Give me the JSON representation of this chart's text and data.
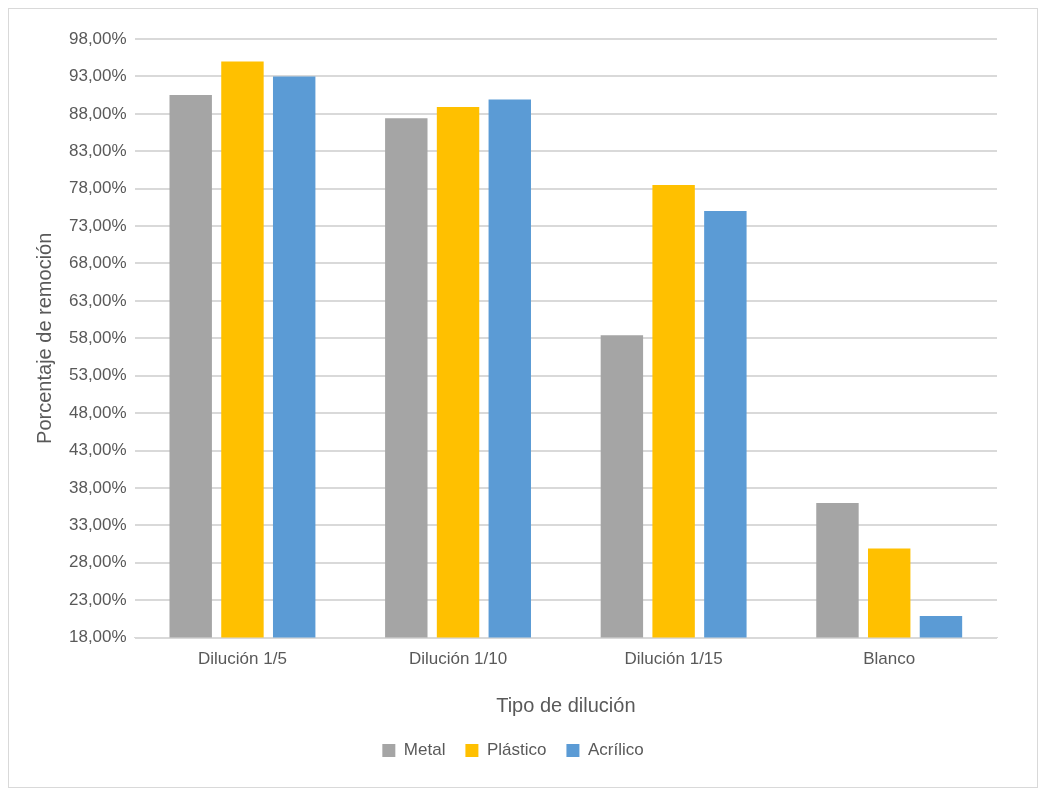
{
  "chart_data": {
    "type": "bar",
    "xlabel": "Tipo de dilución",
    "ylabel": "Porcentaje de remoción",
    "categories": [
      "Dilución 1/5",
      "Dilución 1/10",
      "Dilución 1/15",
      "Blanco"
    ],
    "series": [
      {
        "name": "Metal",
        "color": "#a5a5a5",
        "values": [
          90.5,
          87.4,
          58.4,
          36.0
        ]
      },
      {
        "name": "Plástico",
        "color": "#ffc000",
        "values": [
          95.0,
          88.9,
          78.5,
          29.9
        ]
      },
      {
        "name": "Acrílico",
        "color": "#5b9bd5",
        "values": [
          93.0,
          89.9,
          75.0,
          20.9
        ]
      }
    ],
    "ylim": [
      18,
      98
    ],
    "yticks": [
      {
        "value": 18,
        "label": "18,00%"
      },
      {
        "value": 23,
        "label": "23,00%"
      },
      {
        "value": 28,
        "label": "28,00%"
      },
      {
        "value": 33,
        "label": "33,00%"
      },
      {
        "value": 38,
        "label": "38,00%"
      },
      {
        "value": 43,
        "label": "43,00%"
      },
      {
        "value": 48,
        "label": "48,00%"
      },
      {
        "value": 53,
        "label": "53,00%"
      },
      {
        "value": 58,
        "label": "58,00%"
      },
      {
        "value": 63,
        "label": "63,00%"
      },
      {
        "value": 68,
        "label": "68,00%"
      },
      {
        "value": 73,
        "label": "73,00%"
      },
      {
        "value": 78,
        "label": "78,00%"
      },
      {
        "value": 83,
        "label": "83,00%"
      },
      {
        "value": 88,
        "label": "88,00%"
      },
      {
        "value": 93,
        "label": "93,00%"
      },
      {
        "value": 98,
        "label": "98,00%"
      }
    ],
    "grid": "y",
    "legend": "bottom"
  }
}
